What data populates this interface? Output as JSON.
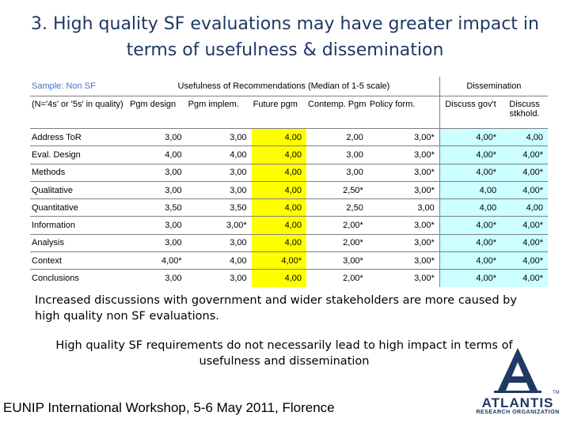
{
  "title": "3. High quality SF evaluations may have greater impact in terms of usefulness & dissemination",
  "table": {
    "sample_label": "Sample: Non SF",
    "group_usefulness": "Usefulness of Recommendations (Median of 1-5 scale)",
    "group_dissemination": "Dissemination",
    "row_header": "(N='4s' or '5s' in quality)",
    "columns": [
      "Pgm design",
      "Pgm implem.",
      "Future pgm",
      "Contemp. Pgm",
      "Policy form.",
      "Discuss gov't",
      "Discuss stkhold."
    ],
    "rows": [
      {
        "label": "Address ToR",
        "values": [
          "3,00",
          "3,00",
          "4,00",
          "2,00",
          "3,00*",
          "4,00*",
          "4,00"
        ]
      },
      {
        "label": "Eval. Design",
        "values": [
          "4,00",
          "4,00",
          "4,00",
          "3,00",
          "3,00*",
          "4,00*",
          "4,00*"
        ]
      },
      {
        "label": "Methods",
        "values": [
          "3,00",
          "3,00",
          "4,00",
          "3,00",
          "3,00*",
          "4,00*",
          "4,00*"
        ]
      },
      {
        "label": "Qualitative",
        "values": [
          "3,00",
          "3,00",
          "4,00",
          "2,50*",
          "3,00*",
          "4,00",
          "4,00*"
        ]
      },
      {
        "label": "Quantitative",
        "values": [
          "3,50",
          "3,50",
          "4,00",
          "2,50",
          "3,00",
          "4,00",
          "4,00"
        ]
      },
      {
        "label": "Information",
        "values": [
          "3,00",
          "3,00*",
          "4,00",
          "2,00*",
          "3,00*",
          "4,00*",
          "4,00*"
        ]
      },
      {
        "label": "Analysis",
        "values": [
          "3,00",
          "3,00",
          "4,00",
          "2,00*",
          "3,00*",
          "4,00*",
          "4,00*"
        ]
      },
      {
        "label": "Context",
        "values": [
          "4,00*",
          "4,00",
          "4,00*",
          "3,00*",
          "3,00*",
          "4,00*",
          "4,00*"
        ]
      },
      {
        "label": "Conclusions",
        "values": [
          "3,00",
          "3,00",
          "4,00",
          "2,00*",
          "3,00*",
          "4,00*",
          "4,00*"
        ]
      }
    ],
    "highlight_colors": {
      "future_pgm": "#ffff00",
      "dissemination": "#ccffff"
    }
  },
  "note_1": "Increased discussions with government and wider stakeholders are more caused by high quality non SF evaluations.",
  "note_2": "High quality SF requirements do not necessarily lead to high impact in terms of usefulness and dissemination",
  "footer": "EUNIP International Workshop, 5-6 May 2011, Florence",
  "logo": {
    "name": "ATLANTIS",
    "subtitle": "RESEARCH ORGANIZATION",
    "tm": "TM",
    "color": "#1f3864"
  }
}
